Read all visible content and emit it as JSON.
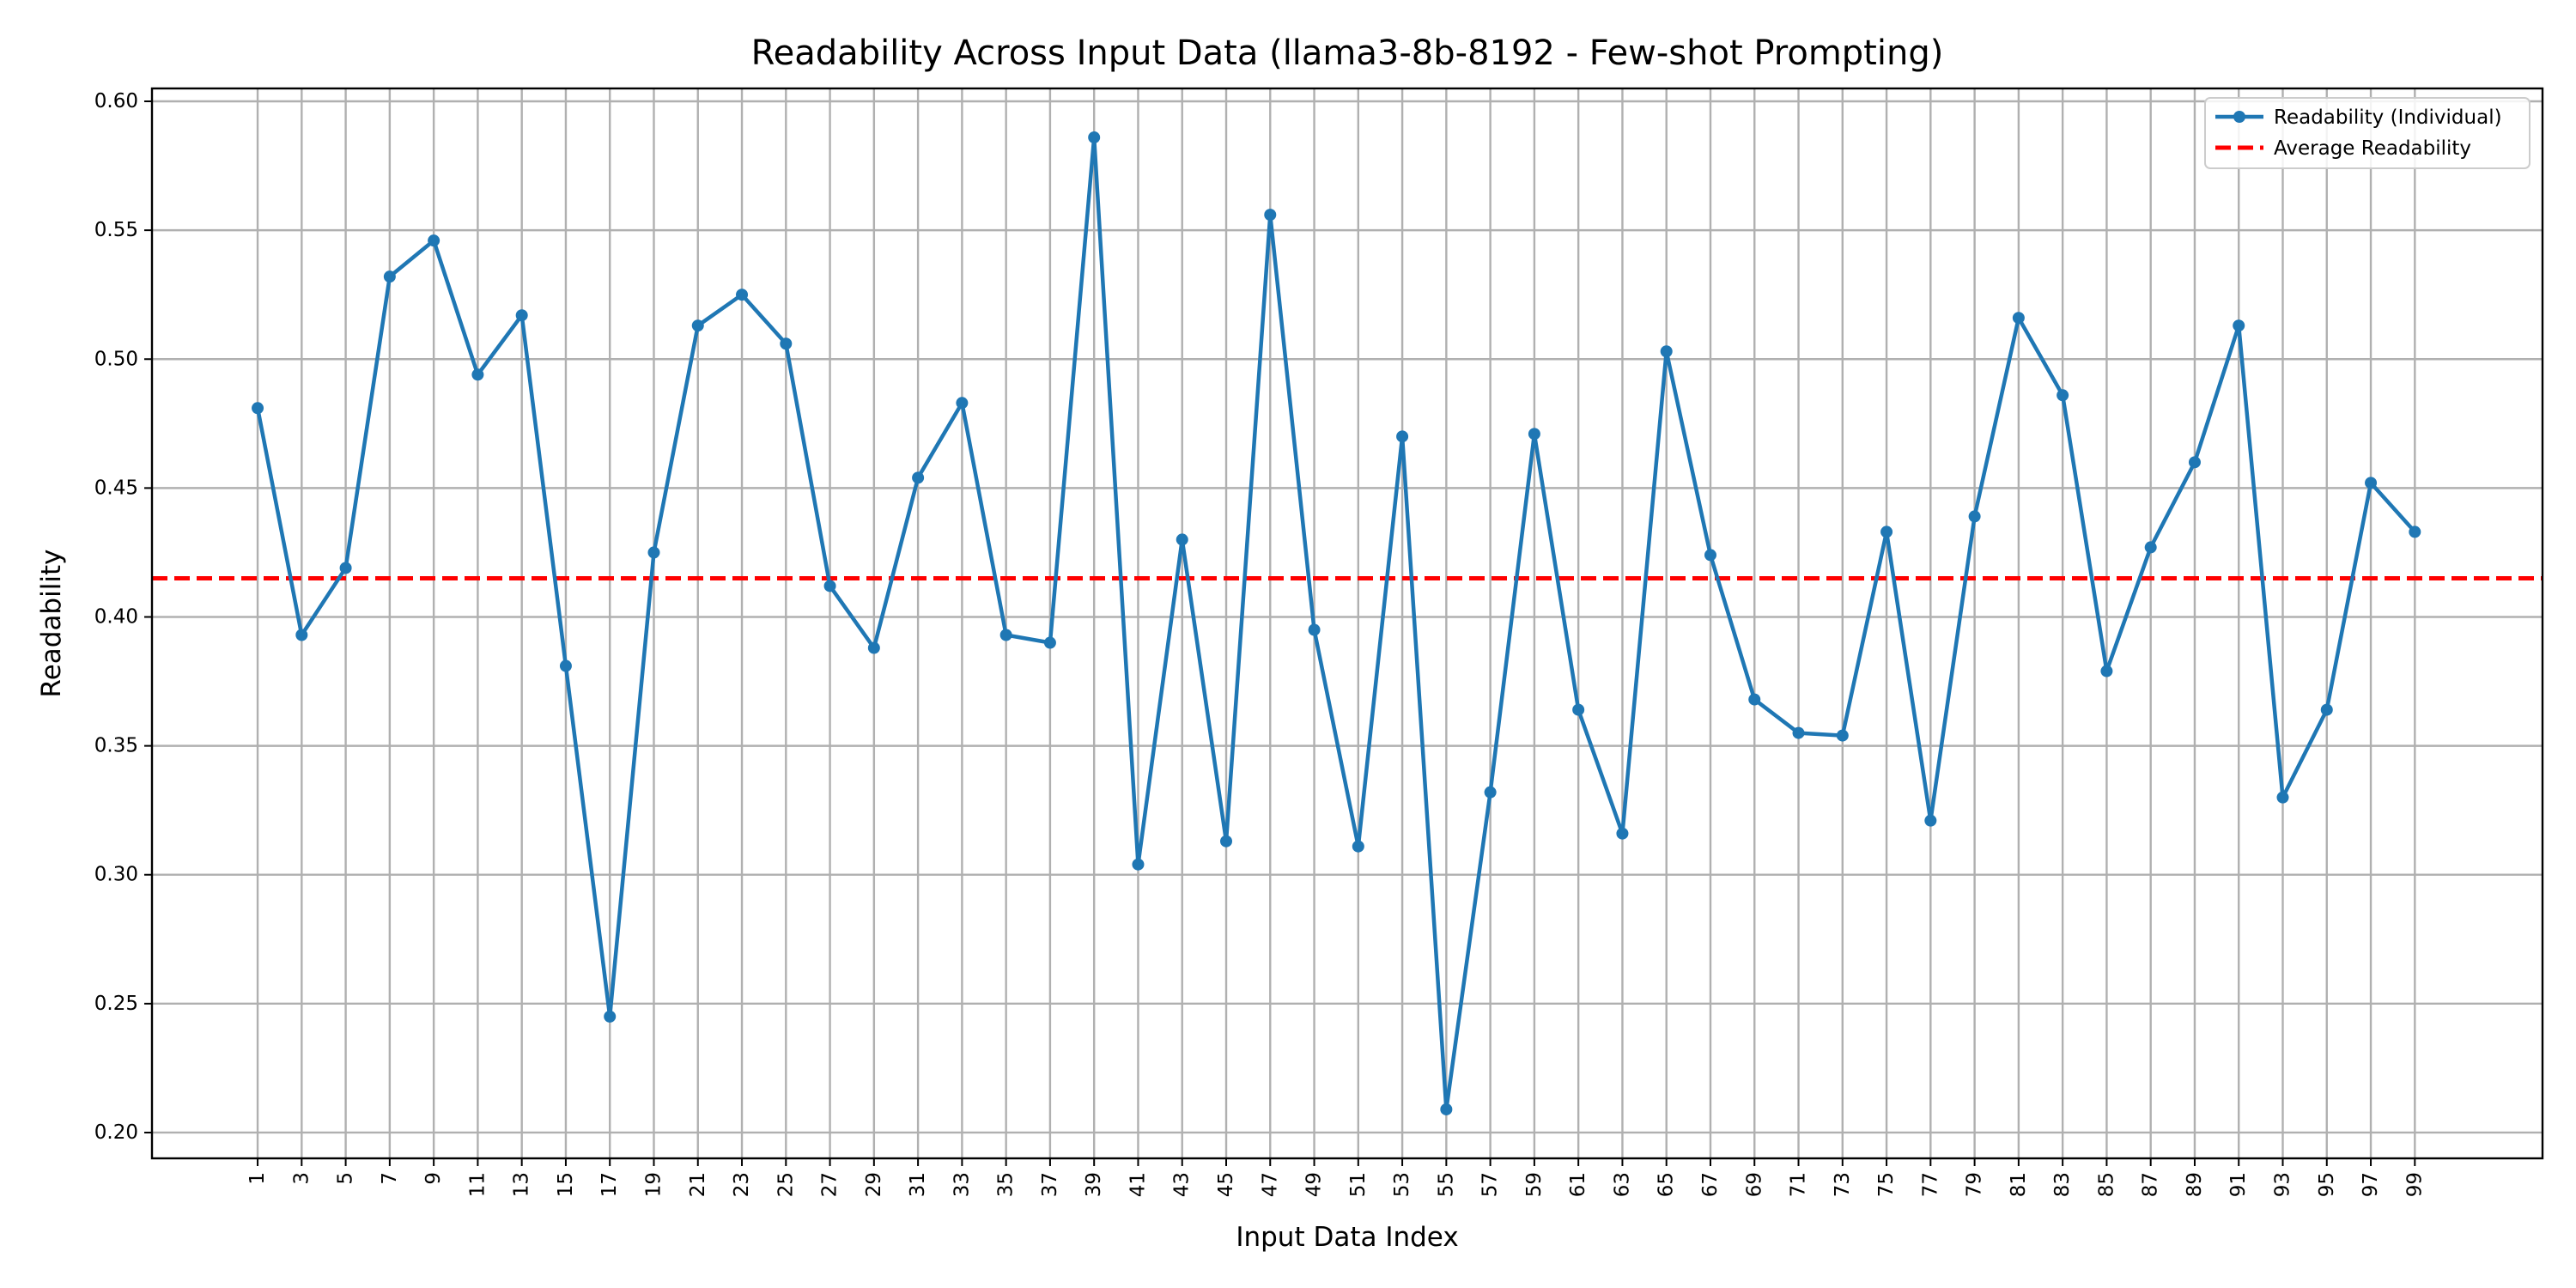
{
  "chart_data": {
    "type": "line",
    "title": "Readability Across Input Data (llama3-8b-8192 - Few-shot Prompting)",
    "xlabel": "Input Data Index",
    "ylabel": "Readability",
    "xlim": [
      -3.8,
      104.8
    ],
    "ylim": [
      0.19,
      0.605
    ],
    "grid": true,
    "legend_position": "top-right",
    "x_ticks": [
      1,
      3,
      5,
      7,
      9,
      11,
      13,
      15,
      17,
      19,
      21,
      23,
      25,
      27,
      29,
      31,
      33,
      35,
      37,
      39,
      41,
      43,
      45,
      47,
      49,
      51,
      53,
      55,
      57,
      59,
      61,
      63,
      65,
      67,
      69,
      71,
      73,
      75,
      77,
      79,
      81,
      83,
      85,
      87,
      89,
      91,
      93,
      95,
      97,
      99
    ],
    "y_ticks": [
      "0.20",
      "0.25",
      "0.30",
      "0.35",
      "0.40",
      "0.45",
      "0.50",
      "0.55",
      "0.60"
    ],
    "series": [
      {
        "name": "Readability (Individual)",
        "color": "#1f77b4",
        "marker": "circle",
        "x": [
          1,
          3,
          5,
          7,
          9,
          11,
          13,
          15,
          17,
          19,
          21,
          23,
          25,
          27,
          29,
          31,
          33,
          35,
          37,
          39,
          41,
          43,
          45,
          47,
          49,
          51,
          53,
          55,
          57,
          59,
          61,
          63,
          65,
          67,
          69,
          71,
          73,
          75,
          77,
          79,
          81,
          83,
          85,
          87,
          89,
          91,
          93,
          95,
          97,
          99
        ],
        "values": [
          0.481,
          0.393,
          0.419,
          0.532,
          0.546,
          0.494,
          0.517,
          0.381,
          0.245,
          0.425,
          0.513,
          0.525,
          0.506,
          0.412,
          0.388,
          0.454,
          0.483,
          0.393,
          0.39,
          0.586,
          0.304,
          0.43,
          0.313,
          0.556,
          0.395,
          0.311,
          0.47,
          0.209,
          0.332,
          0.471,
          0.364,
          0.316,
          0.503,
          0.424,
          0.368,
          0.355,
          0.354,
          0.433,
          0.321,
          0.439,
          0.516,
          0.486,
          0.379,
          0.427,
          0.46,
          0.513,
          0.33,
          0.364,
          0.452,
          0.433
        ]
      }
    ],
    "reference_lines": [
      {
        "name": "Average Readability",
        "color": "#ff0000",
        "style": "dashed",
        "value": 0.415
      }
    ]
  }
}
